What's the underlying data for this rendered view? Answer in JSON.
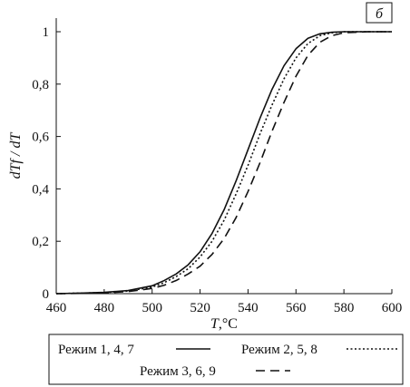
{
  "chart_data": {
    "type": "line",
    "panel_label": "б",
    "xlabel_var": "T",
    "xlabel_unit": ",°C",
    "ylabel": "dTf / dT",
    "xlim": [
      460,
      600
    ],
    "ylim": [
      0,
      1
    ],
    "xticks": [
      "460",
      "480",
      "500",
      "520",
      "540",
      "560",
      "580",
      "600"
    ],
    "yticks": [
      "0",
      "0,2",
      "0,4",
      "0,6",
      "0,8",
      "1"
    ],
    "series": [
      {
        "name": "Режим 1, 4, 7",
        "style": "solid",
        "x": [
          460,
          470,
          480,
          490,
          500,
          505,
          510,
          515,
          520,
          525,
          530,
          535,
          540,
          545,
          550,
          555,
          560,
          565,
          570,
          575,
          580,
          590,
          600
        ],
        "y": [
          0,
          0.002,
          0.005,
          0.012,
          0.03,
          0.05,
          0.075,
          0.11,
          0.16,
          0.23,
          0.32,
          0.43,
          0.55,
          0.67,
          0.78,
          0.87,
          0.935,
          0.975,
          0.992,
          0.998,
          1,
          1,
          1
        ]
      },
      {
        "name": "Режим 2, 5, 8",
        "style": "dotted",
        "x": [
          460,
          470,
          480,
          490,
          500,
          505,
          510,
          515,
          520,
          525,
          530,
          535,
          540,
          545,
          550,
          555,
          560,
          565,
          570,
          575,
          580,
          590,
          600
        ],
        "y": [
          0,
          0.002,
          0.004,
          0.01,
          0.025,
          0.042,
          0.065,
          0.095,
          0.14,
          0.2,
          0.28,
          0.38,
          0.49,
          0.61,
          0.72,
          0.82,
          0.9,
          0.955,
          0.985,
          0.996,
          1,
          1,
          1
        ]
      },
      {
        "name": "Режим 3, 6, 9",
        "style": "dashed",
        "x": [
          460,
          470,
          480,
          490,
          500,
          505,
          510,
          515,
          520,
          525,
          530,
          535,
          540,
          545,
          550,
          555,
          560,
          565,
          570,
          575,
          580,
          590,
          600
        ],
        "y": [
          0,
          0.001,
          0.003,
          0.008,
          0.02,
          0.032,
          0.05,
          0.075,
          0.105,
          0.15,
          0.21,
          0.29,
          0.39,
          0.5,
          0.62,
          0.73,
          0.83,
          0.91,
          0.96,
          0.985,
          0.996,
          1,
          1
        ]
      }
    ],
    "legend_position": "bottom"
  }
}
